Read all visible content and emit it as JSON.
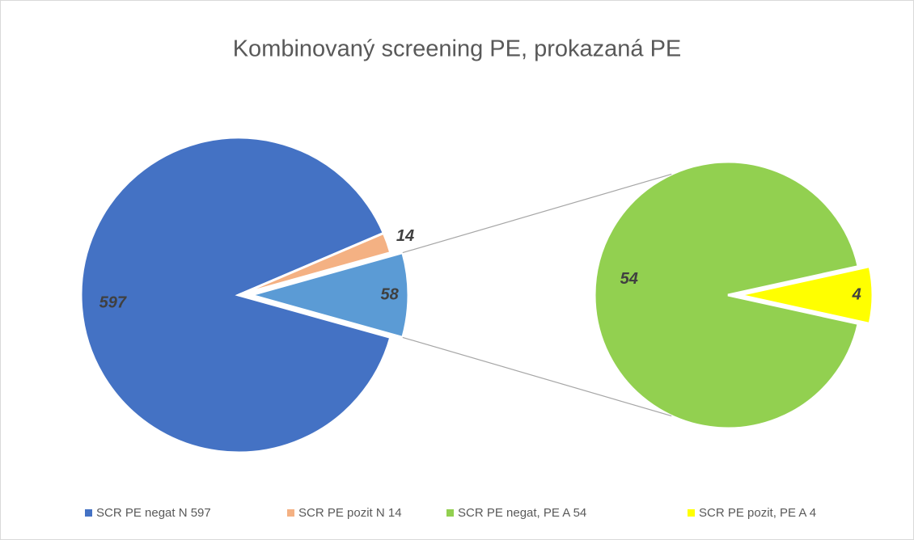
{
  "chart_data": {
    "type": "pie_of_pie",
    "title": "Kombinovaný screening PE, prokazaná PE",
    "slices": [
      {
        "name": "SCR PE negat N 597",
        "color": "#4472c4",
        "value": 597
      },
      {
        "name": "SCR PE pozit N 14",
        "color": "#f4b183",
        "value": 14
      }
    ],
    "other": {
      "color": "#5b9bd5",
      "value": 58
    },
    "secondary": [
      {
        "name": "SCR PE negat, PE A 54",
        "color": "#92d050",
        "value": 54
      },
      {
        "name": "SCR PE pozit, PE A 4",
        "color": "#ffff00",
        "value": 4
      }
    ],
    "legend": "bottom"
  }
}
